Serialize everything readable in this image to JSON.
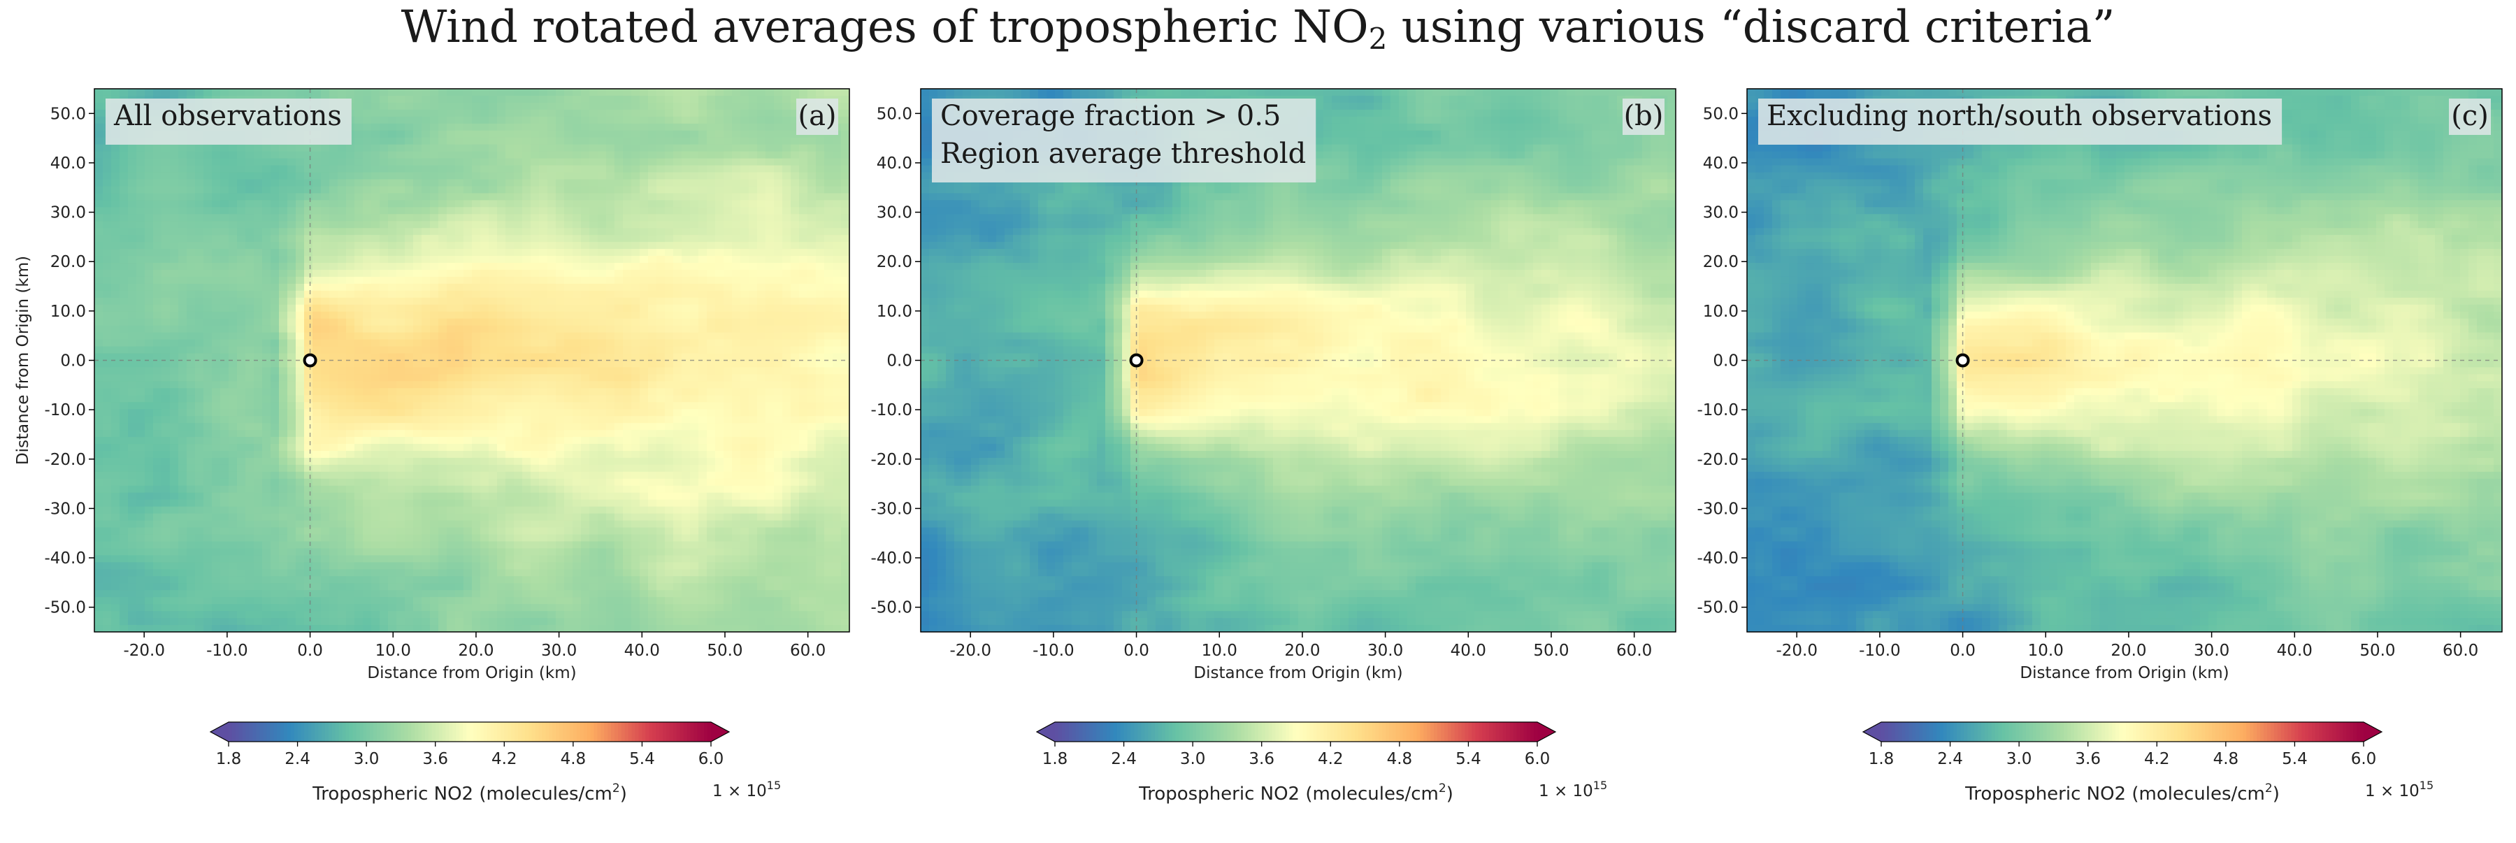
{
  "title_main": "Wind rotated averages of tropospheric NO",
  "title_sub": "2",
  "title_tail": " using various “discard criteria”",
  "colors": {
    "low": "#5e4fa2",
    "mid_low": "#3288bd",
    "mid": "#abdda4",
    "center": "#ffffbf",
    "mid_high": "#fdae61",
    "high": "#d53e4f",
    "top": "#9e0142"
  },
  "chart_data": [
    {
      "type": "heatmap",
      "panel_tag": "(a)",
      "annotation_lines": [
        "All observations"
      ],
      "xlabel": "Distance from Origin (km)",
      "ylabel": "Distance from Origin (km)",
      "show_ylabel": true,
      "xlim": [
        -26,
        65
      ],
      "ylim": [
        -55,
        55
      ],
      "x_ticks": [
        -20,
        -10,
        0,
        10,
        20,
        30,
        40,
        50,
        60
      ],
      "x_tick_labels": [
        "-20.0",
        "-10.0",
        "0.0",
        "10.0",
        "20.0",
        "30.0",
        "40.0",
        "50.0",
        "60.0"
      ],
      "y_ticks": [
        50,
        40,
        30,
        20,
        10,
        0,
        -10,
        -20,
        -30,
        -40,
        -50
      ],
      "y_tick_labels": [
        "50.0",
        "40.0",
        "30.0",
        "20.0",
        "10.0",
        "0.0",
        "-10.0",
        "-20.0",
        "-30.0",
        "-40.0",
        "-50.0"
      ],
      "origin_marker": [
        0,
        0
      ],
      "colorbar": {
        "min": 1.8,
        "max": 6.0,
        "ticks": [
          1.8,
          2.4,
          3.0,
          3.6,
          4.2,
          4.8,
          5.4,
          6.0
        ],
        "tick_labels": [
          "1.8",
          "2.4",
          "3.0",
          "3.6",
          "4.2",
          "4.8",
          "5.4",
          "6.0"
        ],
        "label": "Tropospheric NO2 (molecules/cm",
        "label_sup": "2",
        "label_close": ")",
        "scale": "1 × 10",
        "scale_exp": "15"
      },
      "field": {
        "background": 3.25,
        "peak": 4.75,
        "plume_length_km": 48,
        "plume_width_km": 14
      }
    },
    {
      "type": "heatmap",
      "panel_tag": "(b)",
      "annotation_lines": [
        "Coverage fraction > 0.5",
        "Region average threshold"
      ],
      "xlabel": "Distance from Origin (km)",
      "ylabel": "",
      "show_ylabel": false,
      "xlim": [
        -26,
        65
      ],
      "ylim": [
        -55,
        55
      ],
      "x_ticks": [
        -20,
        -10,
        0,
        10,
        20,
        30,
        40,
        50,
        60
      ],
      "x_tick_labels": [
        "-20.0",
        "-10.0",
        "0.0",
        "10.0",
        "20.0",
        "30.0",
        "40.0",
        "50.0",
        "60.0"
      ],
      "y_ticks": [
        50,
        40,
        30,
        20,
        10,
        0,
        -10,
        -20,
        -30,
        -40,
        -50
      ],
      "y_tick_labels": [
        "50.0",
        "40.0",
        "30.0",
        "20.0",
        "10.0",
        "0.0",
        "-10.0",
        "-20.0",
        "-30.0",
        "-40.0",
        "-50.0"
      ],
      "origin_marker": [
        0,
        0
      ],
      "colorbar": {
        "min": 1.8,
        "max": 6.0,
        "ticks": [
          1.8,
          2.4,
          3.0,
          3.6,
          4.2,
          4.8,
          5.4,
          6.0
        ],
        "tick_labels": [
          "1.8",
          "2.4",
          "3.0",
          "3.6",
          "4.2",
          "4.8",
          "5.4",
          "6.0"
        ],
        "label": "Tropospheric NO2 (molecules/cm",
        "label_sup": "2",
        "label_close": ")",
        "scale": "1 × 10",
        "scale_exp": "15"
      },
      "field": {
        "background": 2.9,
        "peak": 4.55,
        "plume_length_km": 50,
        "plume_width_km": 13
      }
    },
    {
      "type": "heatmap",
      "panel_tag": "(c)",
      "annotation_lines": [
        "Excluding north/south observations"
      ],
      "xlabel": "Distance from Origin (km)",
      "ylabel": "",
      "show_ylabel": false,
      "xlim": [
        -26,
        65
      ],
      "ylim": [
        -55,
        55
      ],
      "x_ticks": [
        -20,
        -10,
        0,
        10,
        20,
        30,
        40,
        50,
        60
      ],
      "x_tick_labels": [
        "-20.0",
        "-10.0",
        "0.0",
        "10.0",
        "20.0",
        "30.0",
        "40.0",
        "50.0",
        "60.0"
      ],
      "y_ticks": [
        50,
        40,
        30,
        20,
        10,
        0,
        -10,
        -20,
        -30,
        -40,
        -50
      ],
      "y_tick_labels": [
        "50.0",
        "40.0",
        "30.0",
        "20.0",
        "10.0",
        "0.0",
        "-10.0",
        "-20.0",
        "-30.0",
        "-40.0",
        "-50.0"
      ],
      "origin_marker": [
        0,
        0
      ],
      "colorbar": {
        "min": 1.8,
        "max": 6.0,
        "ticks": [
          1.8,
          2.4,
          3.0,
          3.6,
          4.2,
          4.8,
          5.4,
          6.0
        ],
        "tick_labels": [
          "1.8",
          "2.4",
          "3.0",
          "3.6",
          "4.2",
          "4.8",
          "5.4",
          "6.0"
        ],
        "label": "Tropospheric NO2 (molecules/cm",
        "label_sup": "2",
        "label_close": ")",
        "scale": "1 × 10",
        "scale_exp": "15"
      },
      "field": {
        "background": 2.85,
        "peak": 4.35,
        "plume_length_km": 52,
        "plume_width_km": 14
      }
    }
  ]
}
